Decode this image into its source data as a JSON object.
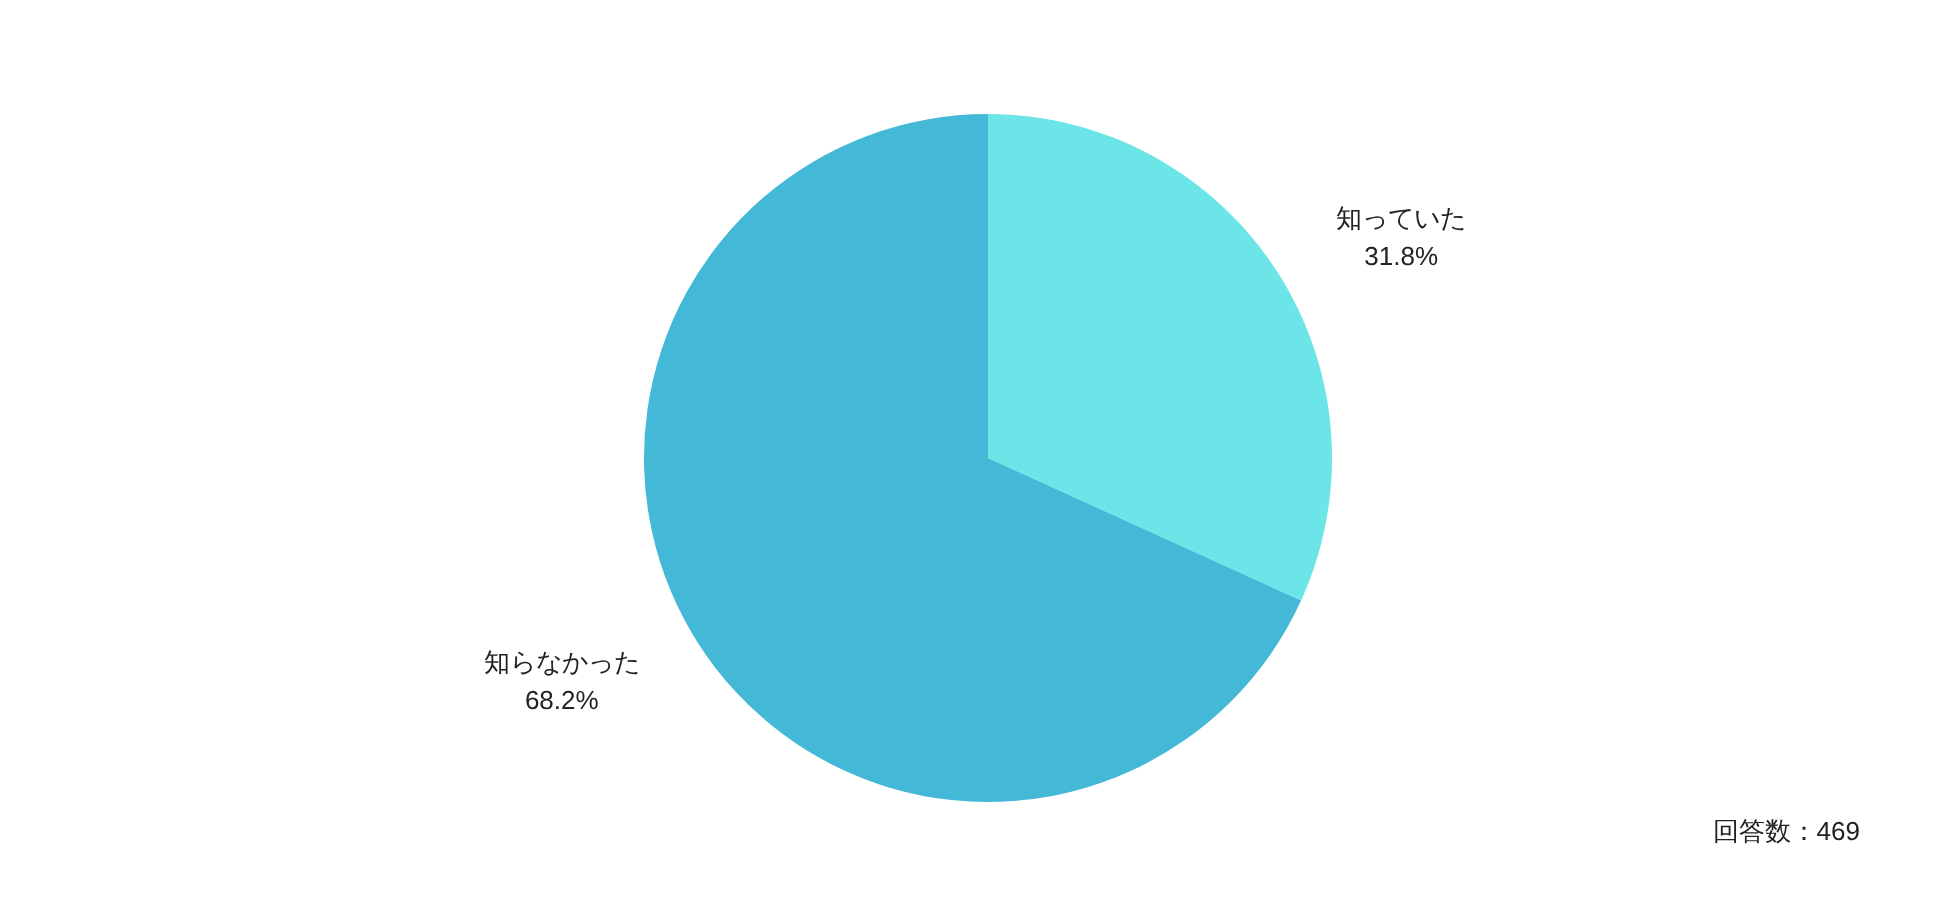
{
  "chart_data": {
    "type": "pie",
    "categories": [
      "知っていた",
      "知らなかった"
    ],
    "values": [
      31.8,
      68.2
    ],
    "colors": [
      "#6ce5e8",
      "#43b8d7"
    ],
    "value_labels": [
      "31.8%",
      "68.2%"
    ],
    "annotations": [
      "回答数：469"
    ]
  }
}
